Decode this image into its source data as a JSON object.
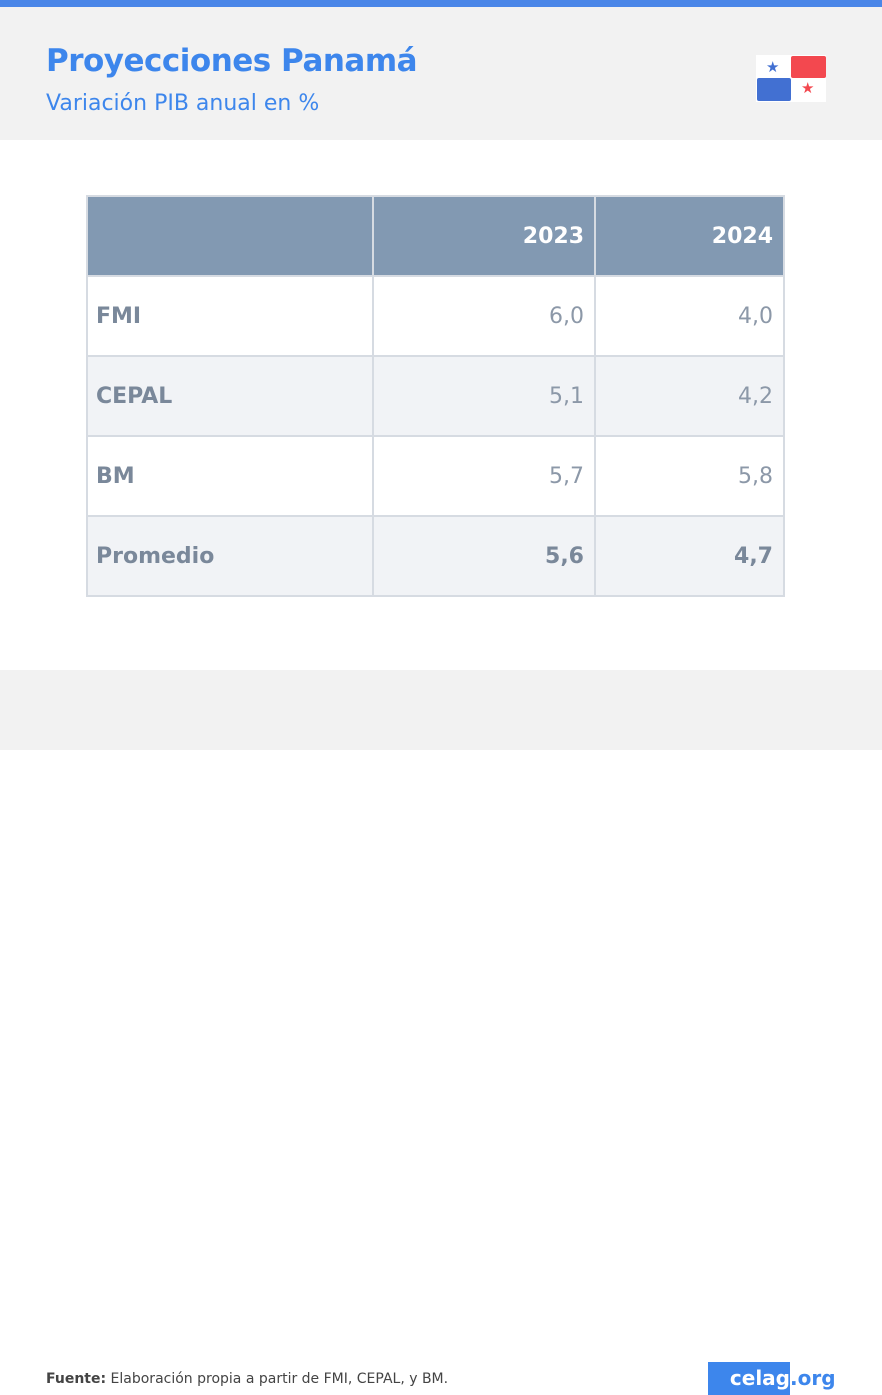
{
  "header": {
    "title": "Proyecciones Panamá",
    "subtitle": "Variación PIB anual en %"
  },
  "colors": {
    "accent": "#3d86ec",
    "flag_red": "#f3484f",
    "flag_blue": "#4270d2",
    "table_header": "#8299b2"
  },
  "table": {
    "columns": [
      "",
      "2023",
      "2024"
    ],
    "rows": [
      {
        "label": "FMI",
        "values": [
          "6,0",
          "4,0"
        ]
      },
      {
        "label": "CEPAL",
        "values": [
          "5,1",
          "4,2"
        ]
      },
      {
        "label": "BM",
        "values": [
          "5,7",
          "5,8"
        ]
      },
      {
        "label": "Promedio",
        "values": [
          "5,6",
          "4,7"
        ]
      }
    ]
  },
  "footer": {
    "source_label": "Fuente:",
    "source_text": " Elaboración propia a partir de FMI, CEPAL, y BM.",
    "logo_main": "celag",
    "logo_suffix": ".org"
  }
}
